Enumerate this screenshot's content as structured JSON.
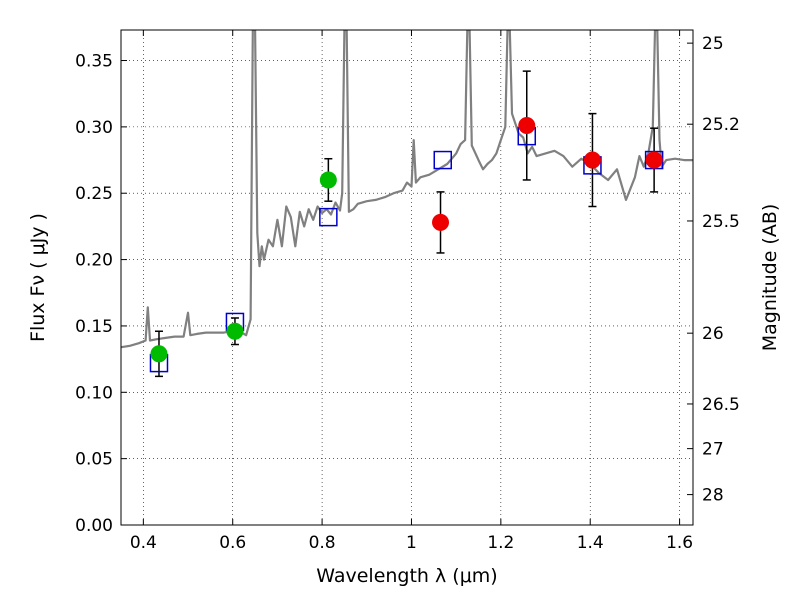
{
  "chart_data": {
    "type": "scatter",
    "xlabel": "Wavelength  λ (μm)",
    "ylabel": "Flux  Fν  ( μJy )",
    "y2label": "Magnitude (AB)",
    "xlim": [
      0.35,
      1.63
    ],
    "ylim": [
      0.0,
      0.373
    ],
    "grid": true,
    "x_ticks": [
      {
        "value": 0.4,
        "label": "0.4"
      },
      {
        "value": 0.6,
        "label": "0.6"
      },
      {
        "value": 0.8,
        "label": "0.8"
      },
      {
        "value": 1.0,
        "label": "1"
      },
      {
        "value": 1.2,
        "label": "1.2"
      },
      {
        "value": 1.4,
        "label": "1.4"
      },
      {
        "value": 1.6,
        "label": "1.6"
      }
    ],
    "y_ticks": [
      {
        "value": 0.0,
        "label": "0.00"
      },
      {
        "value": 0.05,
        "label": "0.05"
      },
      {
        "value": 0.1,
        "label": "0.10"
      },
      {
        "value": 0.15,
        "label": "0.15"
      },
      {
        "value": 0.2,
        "label": "0.20"
      },
      {
        "value": 0.25,
        "label": "0.25"
      },
      {
        "value": 0.3,
        "label": "0.30"
      },
      {
        "value": 0.35,
        "label": "0.35"
      }
    ],
    "y2_ticks": [
      {
        "mag": 25,
        "label": "25"
      },
      {
        "mag": 25.2,
        "label": "25.2"
      },
      {
        "mag": 25.5,
        "label": "25.5"
      },
      {
        "mag": 26,
        "label": "26"
      },
      {
        "mag": 26.5,
        "label": "26.5"
      },
      {
        "mag": 27,
        "label": "27"
      },
      {
        "mag": 28,
        "label": "28"
      }
    ],
    "series": [
      {
        "kind": "model-spectrum",
        "color": "#808080",
        "points": [
          [
            0.35,
            0.134
          ],
          [
            0.37,
            0.135
          ],
          [
            0.39,
            0.137
          ],
          [
            0.405,
            0.139
          ],
          [
            0.41,
            0.164
          ],
          [
            0.415,
            0.139
          ],
          [
            0.43,
            0.14
          ],
          [
            0.45,
            0.141
          ],
          [
            0.47,
            0.142
          ],
          [
            0.49,
            0.142
          ],
          [
            0.5,
            0.16
          ],
          [
            0.505,
            0.143
          ],
          [
            0.52,
            0.144
          ],
          [
            0.54,
            0.145
          ],
          [
            0.56,
            0.145
          ],
          [
            0.58,
            0.145
          ],
          [
            0.6,
            0.146
          ],
          [
            0.62,
            0.145
          ],
          [
            0.63,
            0.143
          ],
          [
            0.64,
            0.155
          ],
          [
            0.645,
            0.373
          ],
          [
            0.65,
            0.373
          ],
          [
            0.655,
            0.22
          ],
          [
            0.66,
            0.195
          ],
          [
            0.665,
            0.21
          ],
          [
            0.67,
            0.2
          ],
          [
            0.68,
            0.215
          ],
          [
            0.69,
            0.21
          ],
          [
            0.7,
            0.23
          ],
          [
            0.71,
            0.21
          ],
          [
            0.72,
            0.24
          ],
          [
            0.73,
            0.232
          ],
          [
            0.74,
            0.21
          ],
          [
            0.75,
            0.236
          ],
          [
            0.76,
            0.225
          ],
          [
            0.77,
            0.238
          ],
          [
            0.78,
            0.23
          ],
          [
            0.79,
            0.24
          ],
          [
            0.8,
            0.235
          ],
          [
            0.81,
            0.238
          ],
          [
            0.82,
            0.234
          ],
          [
            0.83,
            0.243
          ],
          [
            0.84,
            0.237
          ],
          [
            0.845,
            0.25
          ],
          [
            0.85,
            0.373
          ],
          [
            0.855,
            0.373
          ],
          [
            0.86,
            0.236
          ],
          [
            0.87,
            0.238
          ],
          [
            0.88,
            0.242
          ],
          [
            0.9,
            0.244
          ],
          [
            0.92,
            0.245
          ],
          [
            0.94,
            0.247
          ],
          [
            0.96,
            0.25
          ],
          [
            0.98,
            0.252
          ],
          [
            0.99,
            0.258
          ],
          [
            1.0,
            0.255
          ],
          [
            1.005,
            0.29
          ],
          [
            1.01,
            0.258
          ],
          [
            1.02,
            0.262
          ],
          [
            1.04,
            0.264
          ],
          [
            1.06,
            0.268
          ],
          [
            1.08,
            0.272
          ],
          [
            1.1,
            0.28
          ],
          [
            1.11,
            0.287
          ],
          [
            1.12,
            0.29
          ],
          [
            1.125,
            0.373
          ],
          [
            1.13,
            0.373
          ],
          [
            1.135,
            0.286
          ],
          [
            1.15,
            0.275
          ],
          [
            1.16,
            0.268
          ],
          [
            1.17,
            0.272
          ],
          [
            1.18,
            0.275
          ],
          [
            1.19,
            0.28
          ],
          [
            1.2,
            0.29
          ],
          [
            1.21,
            0.3
          ],
          [
            1.215,
            0.373
          ],
          [
            1.22,
            0.373
          ],
          [
            1.225,
            0.31
          ],
          [
            1.24,
            0.295
          ],
          [
            1.25,
            0.292
          ],
          [
            1.26,
            0.28
          ],
          [
            1.27,
            0.285
          ],
          [
            1.28,
            0.278
          ],
          [
            1.3,
            0.28
          ],
          [
            1.32,
            0.282
          ],
          [
            1.34,
            0.278
          ],
          [
            1.36,
            0.27
          ],
          [
            1.38,
            0.276
          ],
          [
            1.4,
            0.272
          ],
          [
            1.42,
            0.265
          ],
          [
            1.44,
            0.26
          ],
          [
            1.46,
            0.268
          ],
          [
            1.48,
            0.245
          ],
          [
            1.5,
            0.262
          ],
          [
            1.51,
            0.278
          ],
          [
            1.52,
            0.27
          ],
          [
            1.53,
            0.28
          ],
          [
            1.54,
            0.3
          ],
          [
            1.545,
            0.373
          ],
          [
            1.55,
            0.373
          ],
          [
            1.555,
            0.29
          ],
          [
            1.56,
            0.27
          ],
          [
            1.57,
            0.275
          ],
          [
            1.59,
            0.276
          ],
          [
            1.61,
            0.275
          ],
          [
            1.63,
            0.275
          ]
        ]
      },
      {
        "kind": "model-photometry",
        "marker": "open-square",
        "color": "#0000cc",
        "points": [
          {
            "x": 0.435,
            "y": 0.122
          },
          {
            "x": 0.605,
            "y": 0.153
          },
          {
            "x": 0.814,
            "y": 0.232
          },
          {
            "x": 1.07,
            "y": 0.275
          },
          {
            "x": 1.258,
            "y": 0.293
          },
          {
            "x": 1.405,
            "y": 0.271
          },
          {
            "x": 1.543,
            "y": 0.275
          }
        ]
      },
      {
        "kind": "observed-photometry",
        "marker": "filled-circle",
        "points": [
          {
            "x": 0.435,
            "y": 0.129,
            "err": 0.017,
            "color": "#00bb00"
          },
          {
            "x": 0.605,
            "y": 0.146,
            "err": 0.01,
            "color": "#00bb00"
          },
          {
            "x": 0.814,
            "y": 0.26,
            "err": 0.016,
            "color": "#00bb00"
          },
          {
            "x": 1.065,
            "y": 0.228,
            "err": 0.023,
            "color": "#ee0000"
          },
          {
            "x": 1.258,
            "y": 0.301,
            "err": 0.041,
            "color": "#ee0000"
          },
          {
            "x": 1.405,
            "y": 0.275,
            "err": 0.035,
            "color": "#ee0000"
          },
          {
            "x": 1.543,
            "y": 0.275,
            "err": 0.024,
            "color": "#ee0000"
          }
        ]
      }
    ]
  }
}
